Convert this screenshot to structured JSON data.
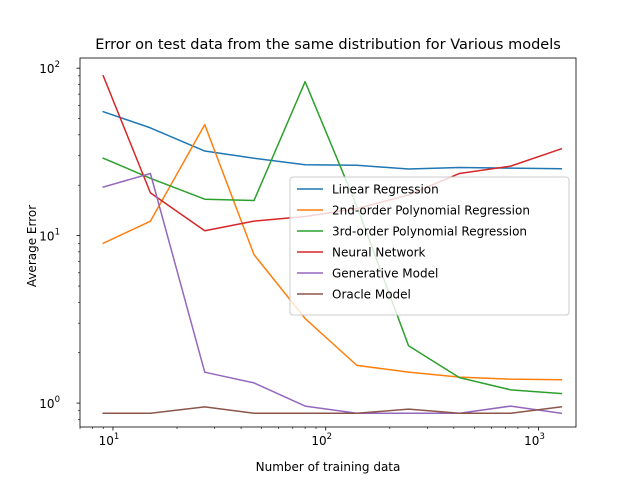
{
  "chart_data": {
    "type": "line",
    "title": "Error on test data from the same distribution for Various models",
    "xlabel": "Number of training data",
    "ylabel": "Average Error",
    "xscale": "log",
    "yscale": "log",
    "xlim": [
      7,
      1500
    ],
    "ylim": [
      0.72,
      115
    ],
    "x_ticks": [
      {
        "value": 10,
        "base": "10",
        "exp": "1"
      },
      {
        "value": 100,
        "base": "10",
        "exp": "2"
      },
      {
        "value": 1000,
        "base": "10",
        "exp": "3"
      }
    ],
    "y_ticks": [
      {
        "value": 1,
        "base": "10",
        "exp": "0"
      },
      {
        "value": 10,
        "base": "10",
        "exp": "1"
      },
      {
        "value": 100,
        "base": "10",
        "exp": "2"
      }
    ],
    "grid": false,
    "legend_position": "center-right",
    "x": [
      9,
      15,
      27,
      46,
      80,
      140,
      245,
      425,
      740,
      1280
    ],
    "series": [
      {
        "name": "Linear Regression",
        "color": "#1f77b4",
        "values": [
          55,
          44,
          32,
          29,
          26.5,
          26.3,
          25,
          25.5,
          25.3,
          25.1
        ]
      },
      {
        "name": "2nd-order Polynomial Regression",
        "color": "#ff7f0e",
        "values": [
          9,
          12.2,
          46,
          7.7,
          3.2,
          1.68,
          1.53,
          1.43,
          1.39,
          1.38
        ]
      },
      {
        "name": "3rd-order Polynomial Regression",
        "color": "#2ca02c",
        "values": [
          29,
          22,
          16.5,
          16.2,
          83,
          15,
          2.2,
          1.42,
          1.2,
          1.14
        ]
      },
      {
        "name": "Neural Network",
        "color": "#d62728",
        "values": [
          90,
          18,
          10.7,
          12.2,
          13,
          14.5,
          17.5,
          23.5,
          26,
          33
        ]
      },
      {
        "name": "Generative Model",
        "color": "#9467bd",
        "values": [
          19.5,
          23.5,
          1.53,
          1.32,
          0.96,
          0.87,
          0.87,
          0.87,
          0.96,
          0.87
        ]
      },
      {
        "name": "Oracle Model",
        "color": "#8c564b",
        "values": [
          0.87,
          0.87,
          0.95,
          0.87,
          0.87,
          0.87,
          0.92,
          0.87,
          0.87,
          0.95
        ]
      }
    ]
  }
}
